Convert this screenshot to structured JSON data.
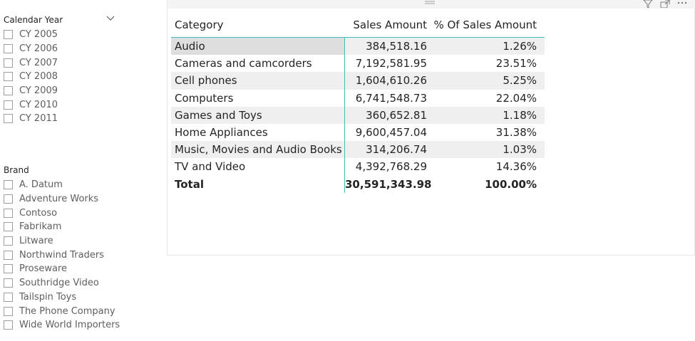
{
  "slicers": {
    "calendar_year": {
      "title": "Calendar Year",
      "items": [
        "CY 2005",
        "CY 2006",
        "CY 2007",
        "CY 2008",
        "CY 2009",
        "CY 2010",
        "CY 2011"
      ]
    },
    "brand": {
      "title": "Brand",
      "items": [
        "A. Datum",
        "Adventure Works",
        "Contoso",
        "Fabrikam",
        "Litware",
        "Northwind Traders",
        "Proseware",
        "Southridge Video",
        "Tailspin Toys",
        "The Phone Company",
        "Wide World Importers"
      ]
    }
  },
  "matrix": {
    "headers": {
      "category": "Category",
      "sales": "Sales Amount",
      "pct": "% Of Sales Amount"
    },
    "rows": [
      {
        "category": "Audio",
        "sales": "384,518.16",
        "pct": "1.26%"
      },
      {
        "category": "Cameras and camcorders",
        "sales": "7,192,581.95",
        "pct": "23.51%"
      },
      {
        "category": "Cell phones",
        "sales": "1,604,610.26",
        "pct": "5.25%"
      },
      {
        "category": "Computers",
        "sales": "6,741,548.73",
        "pct": "22.04%"
      },
      {
        "category": "Games and Toys",
        "sales": "360,652.81",
        "pct": "1.18%"
      },
      {
        "category": "Home Appliances",
        "sales": "9,600,457.04",
        "pct": "31.38%"
      },
      {
        "category": "Music, Movies and Audio Books",
        "sales": "314,206.74",
        "pct": "1.03%"
      },
      {
        "category": "TV and Video",
        "sales": "4,392,768.29",
        "pct": "14.36%"
      }
    ],
    "total": {
      "category": "Total",
      "sales": "30,591,343.98",
      "pct": "100.00%"
    }
  },
  "colors": {
    "accent": "#41bfbc",
    "alt_row": "#efefef",
    "selected_cell": "#dedede"
  },
  "icons": {
    "slicer_dropdown": "chevron-down-icon",
    "visual_header": [
      "drag-handle-icon",
      "filter-icon",
      "focus-mode-icon",
      "more-options-icon"
    ]
  }
}
